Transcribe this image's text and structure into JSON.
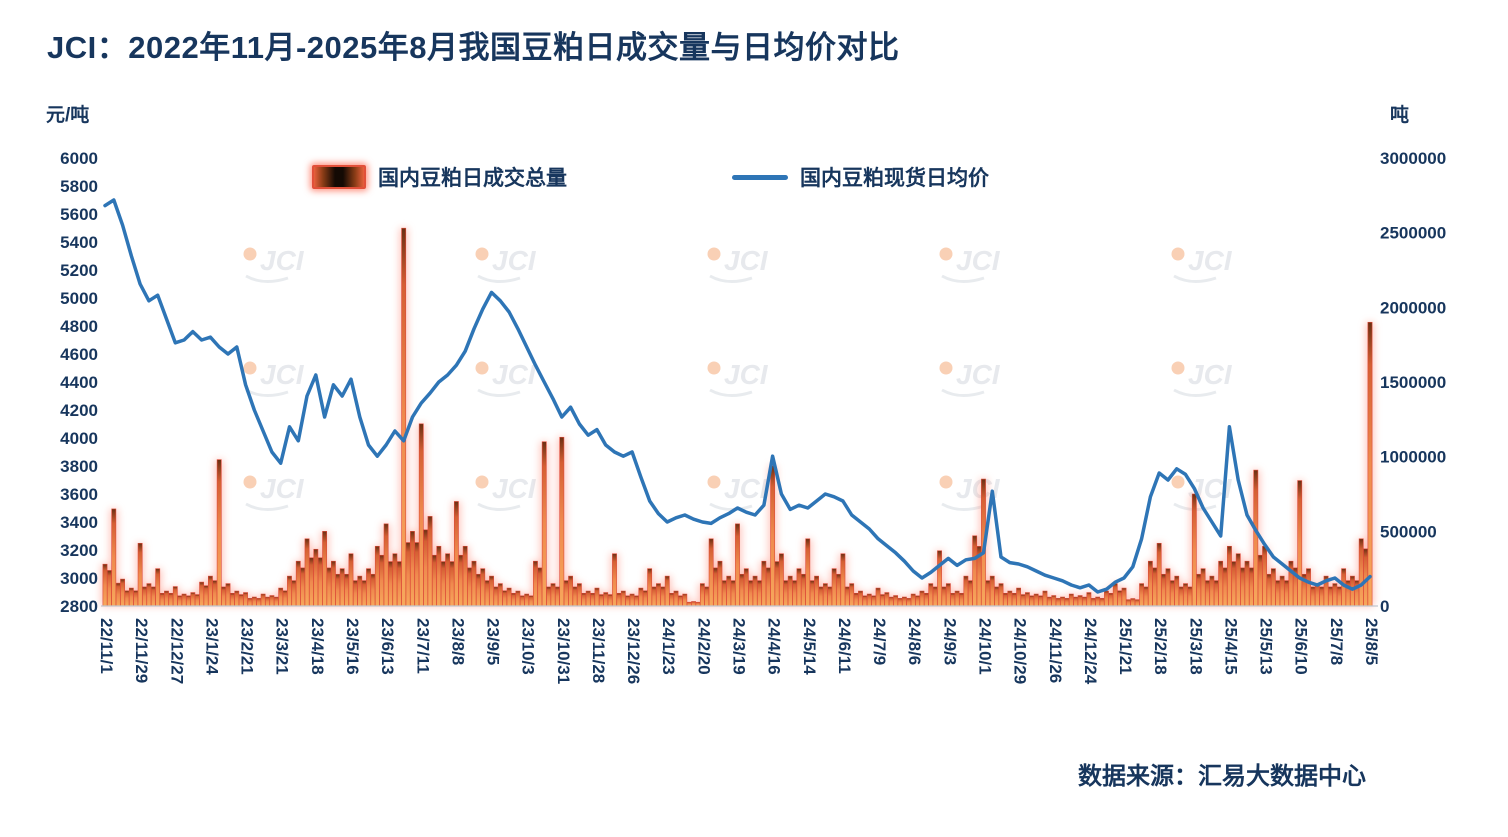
{
  "page": {
    "title": "JCI：2022年11月-2025年8月我国豆粕日成交量与日均价对比",
    "source_note": "数据来源：汇易大数据中心",
    "watermark_text": "JCI"
  },
  "colors": {
    "title_text": "#17365d",
    "axis_text": "#17365d",
    "price_line": "#2e75b6",
    "bar_body": "#f0884a",
    "bar_dark_tip": "#6b2f12",
    "bar_glow": "#ff9180",
    "axis_line": "#c0c6cf"
  },
  "chart_data": {
    "type": "bar+line combo",
    "title": "JCI：2022年11月-2025年8月我国豆粕日成交量与日均价对比",
    "legend_position": "top",
    "grid": false,
    "left_axis": {
      "label": "元/吨",
      "min": 2800,
      "max": 6000,
      "step": 200
    },
    "right_axis": {
      "label": "吨",
      "min": 0,
      "max": 3000000,
      "step": 500000
    },
    "x_tick_labels": [
      "22/11/1",
      "22/11/29",
      "22/12/27",
      "23/1/24",
      "23/2/21",
      "23/3/21",
      "23/4/18",
      "23/5/16",
      "23/6/13",
      "23/7/11",
      "23/8/8",
      "23/9/5",
      "23/10/3",
      "23/10/31",
      "23/11/28",
      "23/12/26",
      "24/1/23",
      "24/2/20",
      "24/3/19",
      "24/4/16",
      "24/5/14",
      "24/6/11",
      "24/7/9",
      "24/8/6",
      "24/9/3",
      "24/10/1",
      "24/10/29",
      "24/11/26",
      "24/12/24",
      "25/1/21",
      "25/2/18",
      "25/3/18",
      "25/4/15",
      "25/5/13",
      "25/6/10",
      "25/7/8",
      "25/8/5"
    ],
    "x_tick_every_n_points": 4,
    "series": [
      {
        "name": "国内豆粕日成交总量",
        "type": "bar",
        "axis": "right",
        "values": [
          280000,
          650000,
          180000,
          120000,
          420000,
          150000,
          250000,
          100000,
          130000,
          80000,
          90000,
          160000,
          200000,
          980000,
          150000,
          100000,
          90000,
          60000,
          80000,
          70000,
          120000,
          200000,
          300000,
          450000,
          380000,
          500000,
          300000,
          250000,
          350000,
          200000,
          250000,
          400000,
          550000,
          350000,
          2530000,
          500000,
          1220000,
          600000,
          400000,
          350000,
          700000,
          400000,
          300000,
          250000,
          200000,
          150000,
          120000,
          100000,
          80000,
          300000,
          1100000,
          150000,
          1130000,
          200000,
          150000,
          100000,
          120000,
          90000,
          350000,
          100000,
          80000,
          120000,
          250000,
          150000,
          200000,
          100000,
          80000,
          30000,
          150000,
          450000,
          300000,
          200000,
          550000,
          250000,
          200000,
          300000,
          940000,
          350000,
          200000,
          250000,
          450000,
          200000,
          150000,
          250000,
          350000,
          150000,
          100000,
          80000,
          120000,
          90000,
          70000,
          60000,
          80000,
          100000,
          150000,
          370000,
          150000,
          100000,
          200000,
          470000,
          850000,
          200000,
          150000,
          100000,
          120000,
          90000,
          80000,
          100000,
          70000,
          60000,
          80000,
          70000,
          90000,
          60000,
          100000,
          150000,
          120000,
          50000,
          150000,
          300000,
          420000,
          250000,
          200000,
          150000,
          750000,
          250000,
          200000,
          300000,
          400000,
          350000,
          300000,
          910000,
          400000,
          250000,
          200000,
          300000,
          840000,
          250000,
          150000,
          200000,
          150000,
          250000,
          200000,
          450000,
          1900000
        ]
      },
      {
        "name": "国内豆粕现货日均价",
        "type": "line",
        "axis": "left",
        "values": [
          5660,
          5700,
          5520,
          5300,
          5100,
          4980,
          5020,
          4850,
          4680,
          4700,
          4760,
          4700,
          4720,
          4650,
          4600,
          4650,
          4380,
          4200,
          4050,
          3900,
          3820,
          4080,
          3980,
          4300,
          4450,
          4150,
          4380,
          4300,
          4420,
          4150,
          3950,
          3870,
          3950,
          4050,
          3980,
          4150,
          4250,
          4320,
          4400,
          4450,
          4520,
          4620,
          4780,
          4920,
          5040,
          4980,
          4900,
          4780,
          4650,
          4520,
          4400,
          4280,
          4150,
          4220,
          4100,
          4020,
          4060,
          3950,
          3900,
          3870,
          3900,
          3720,
          3550,
          3460,
          3400,
          3430,
          3450,
          3420,
          3400,
          3390,
          3430,
          3460,
          3500,
          3470,
          3450,
          3520,
          3870,
          3600,
          3490,
          3520,
          3500,
          3550,
          3600,
          3580,
          3550,
          3450,
          3400,
          3350,
          3280,
          3230,
          3180,
          3120,
          3050,
          3000,
          3040,
          3090,
          3140,
          3090,
          3130,
          3140,
          3180,
          3620,
          3150,
          3110,
          3100,
          3080,
          3050,
          3020,
          3000,
          2980,
          2950,
          2930,
          2950,
          2900,
          2920,
          2970,
          3000,
          3080,
          3280,
          3580,
          3750,
          3700,
          3780,
          3740,
          3640,
          3500,
          3400,
          3300,
          4080,
          3700,
          3450,
          3340,
          3240,
          3150,
          3100,
          3050,
          3000,
          2970,
          2950,
          2980,
          3000,
          2950,
          2920,
          2950,
          3010
        ]
      }
    ]
  }
}
